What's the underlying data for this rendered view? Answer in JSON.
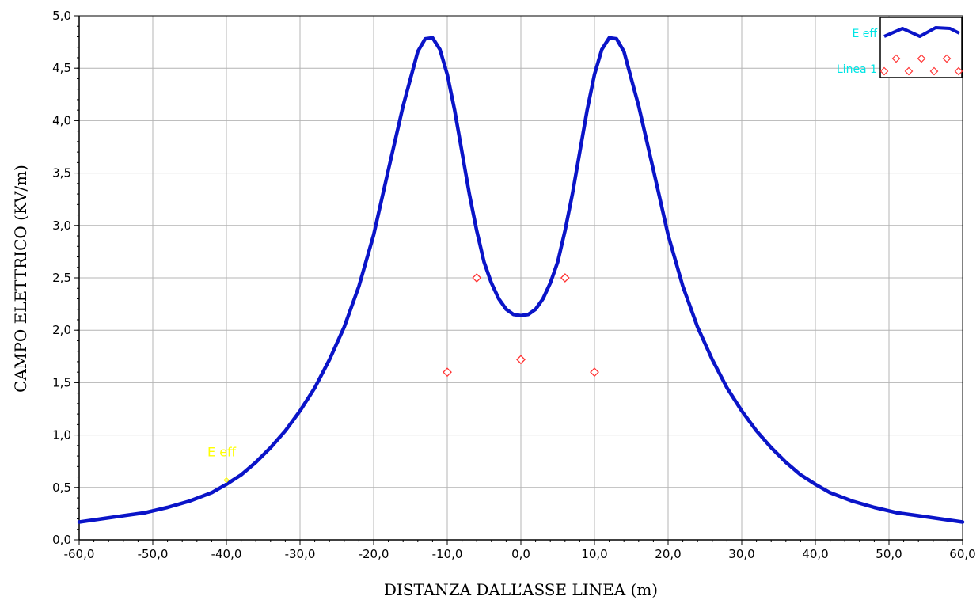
{
  "chart_data": {
    "type": "line",
    "title": "",
    "xlabel": "DISTANZA DALL’ASSE LINEA (m)",
    "ylabel": "CAMPO ELETTRICO (KV/m)",
    "xlim": [
      -60,
      60
    ],
    "ylim": [
      0,
      5
    ],
    "x_ticks": [
      -60,
      -50,
      -40,
      -30,
      -20,
      -10,
      0,
      10,
      20,
      30,
      40,
      50,
      60
    ],
    "y_ticks": [
      0,
      0.5,
      1,
      1.5,
      2,
      2.5,
      3,
      3.5,
      4,
      4.5,
      5
    ],
    "x_tick_labels": [
      "-60,0",
      "-50,0",
      "-40,0",
      "-30,0",
      "-20,0",
      "-10,0",
      "0,0",
      "10,0",
      "20,0",
      "30,0",
      "40,0",
      "50,0",
      "60,0"
    ],
    "y_tick_labels": [
      "0,0",
      "0,5",
      "1,0",
      "1,5",
      "2,0",
      "2,5",
      "3,0",
      "3,5",
      "4,0",
      "4,5",
      "5,0"
    ],
    "grid": true,
    "legend_position": "top-right",
    "colors": {
      "curve": "#0a14c8",
      "markers": "#ff3333",
      "legend_text": "#00e5e5",
      "annotation": "#ffff00",
      "grid": "#b4b4b4"
    },
    "series": [
      {
        "name": "E eff",
        "kind": "line",
        "x": [
          -60,
          -57,
          -54,
          -51,
          -48,
          -45,
          -42,
          -40,
          -38,
          -36,
          -34,
          -32,
          -30,
          -28,
          -26,
          -24,
          -22,
          -20,
          -18,
          -16,
          -14,
          -13,
          -12,
          -11,
          -10,
          -9,
          -8,
          -7,
          -6,
          -5,
          -4,
          -3,
          -2,
          -1,
          0,
          1,
          2,
          3,
          4,
          5,
          6,
          7,
          8,
          9,
          10,
          11,
          12,
          13,
          14,
          16,
          18,
          20,
          22,
          24,
          26,
          28,
          30,
          32,
          34,
          36,
          38,
          40,
          42,
          45,
          48,
          51,
          54,
          57,
          60
        ],
        "values": [
          0.17,
          0.2,
          0.23,
          0.26,
          0.31,
          0.37,
          0.45,
          0.53,
          0.62,
          0.74,
          0.88,
          1.04,
          1.23,
          1.45,
          1.72,
          2.03,
          2.42,
          2.91,
          3.53,
          4.14,
          4.66,
          4.78,
          4.79,
          4.68,
          4.44,
          4.1,
          3.7,
          3.3,
          2.95,
          2.65,
          2.45,
          2.3,
          2.2,
          2.15,
          2.14,
          2.15,
          2.2,
          2.3,
          2.45,
          2.65,
          2.95,
          3.3,
          3.7,
          4.1,
          4.44,
          4.68,
          4.79,
          4.78,
          4.66,
          4.14,
          3.53,
          2.91,
          2.42,
          2.03,
          1.72,
          1.45,
          1.23,
          1.04,
          0.88,
          0.74,
          0.62,
          0.53,
          0.45,
          0.37,
          0.31,
          0.26,
          0.23,
          0.2,
          0.17
        ]
      },
      {
        "name": "Linea 1",
        "kind": "scatter",
        "x": [
          -6,
          6,
          -10,
          0,
          10
        ],
        "values": [
          2.5,
          2.5,
          1.6,
          1.72,
          1.6
        ]
      }
    ],
    "annotations": [
      {
        "text": "E eff",
        "x": -40,
        "y": 0.57
      }
    ]
  }
}
